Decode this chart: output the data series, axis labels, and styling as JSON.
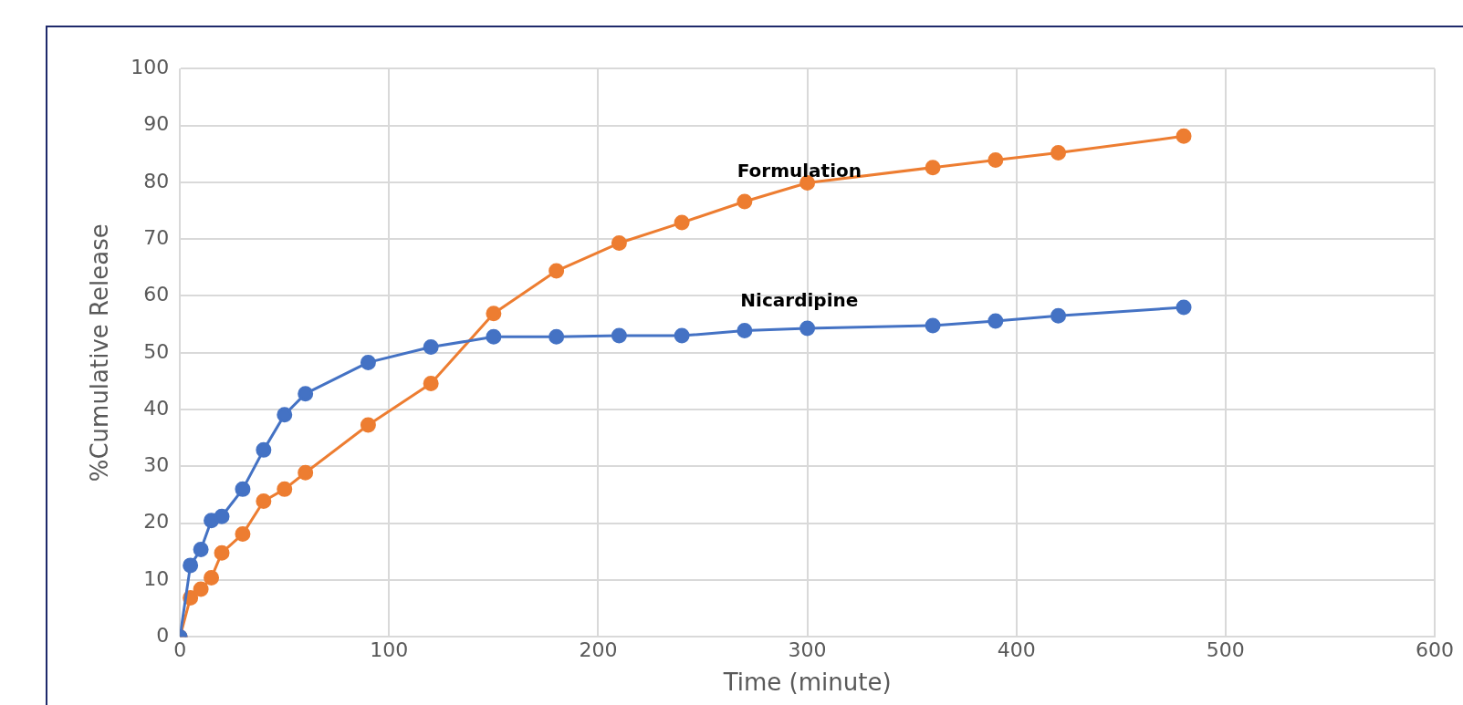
{
  "chart_data": {
    "type": "line",
    "xlabel": "Time (minute)",
    "ylabel": "%Cumulative Release",
    "xlim": [
      0,
      600
    ],
    "xticks": [
      0,
      100,
      200,
      300,
      400,
      500,
      600
    ],
    "ylim": [
      0,
      100
    ],
    "yticks": [
      0,
      10,
      20,
      30,
      40,
      50,
      60,
      70,
      80,
      90,
      100
    ],
    "grid": true,
    "legend": false,
    "marker": "circle",
    "line_style": "solid",
    "series": [
      {
        "name": "Nicardipine",
        "color": "#4472c4",
        "x": [
          0,
          5,
          10,
          15,
          20,
          30,
          40,
          50,
          60,
          90,
          120,
          150,
          180,
          210,
          240,
          270,
          300,
          360,
          390,
          420,
          480
        ],
        "values": [
          0,
          12.6,
          15.4,
          20.5,
          21.2,
          26,
          32.9,
          39.1,
          42.8,
          48.3,
          51,
          52.8,
          52.8,
          53,
          53,
          53.9,
          54.3,
          54.8,
          55.6,
          56.5,
          58
        ]
      },
      {
        "name": "Formulation",
        "color": "#ed7d31",
        "x": [
          0,
          5,
          10,
          15,
          20,
          30,
          40,
          50,
          60,
          90,
          120,
          150,
          180,
          210,
          240,
          270,
          300,
          360,
          390,
          420,
          480
        ],
        "values": [
          0,
          6.9,
          8.4,
          10.4,
          14.8,
          18.1,
          23.9,
          26,
          28.9,
          37.3,
          44.6,
          56.9,
          64.4,
          69.3,
          72.9,
          76.6,
          79.9,
          82.6,
          83.9,
          85.2,
          88.1
        ]
      }
    ]
  }
}
